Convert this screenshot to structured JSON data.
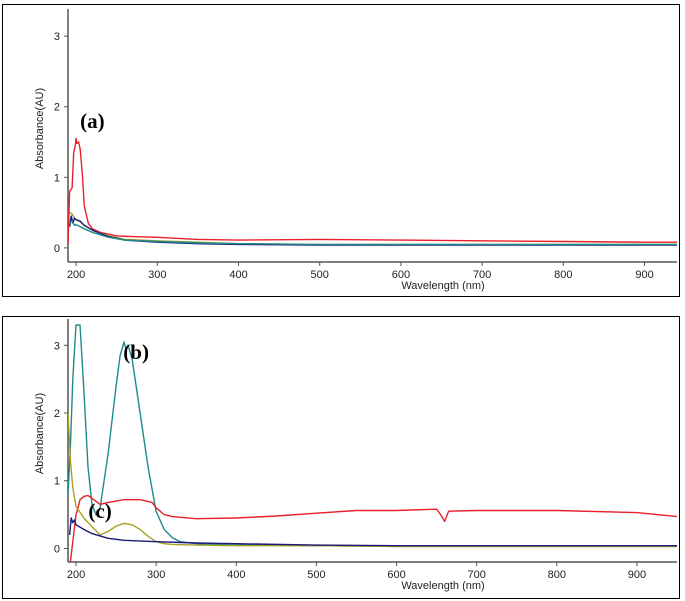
{
  "chart_data": [
    {
      "type": "line",
      "xlabel": "Wavelength (nm)",
      "ylabel": "Absorbance(AU)",
      "xlim": [
        190,
        940
      ],
      "ylim": [
        -0.2,
        3.3
      ],
      "xticks": [
        200,
        300,
        400,
        500,
        600,
        700,
        800,
        900
      ],
      "yticks": [
        0,
        1,
        2,
        3
      ],
      "annotations": [
        {
          "text": "(a)",
          "x": 220,
          "y": 1.7
        }
      ],
      "series": [
        {
          "color": "#e8202a",
          "x": [
            190,
            192,
            195,
            197,
            199,
            200,
            201,
            203,
            205,
            208,
            210,
            215,
            220,
            230,
            250,
            270,
            300,
            350,
            400,
            500,
            600,
            700,
            800,
            900,
            940
          ],
          "y": [
            0.05,
            0.8,
            0.85,
            1.35,
            1.45,
            1.55,
            1.48,
            1.5,
            1.4,
            1.0,
            0.6,
            0.35,
            0.27,
            0.22,
            0.17,
            0.16,
            0.15,
            0.12,
            0.11,
            0.12,
            0.11,
            0.1,
            0.09,
            0.08,
            0.08
          ]
        },
        {
          "color": "#a8a020",
          "x": [
            192,
            195,
            198,
            200,
            205,
            210,
            220,
            240,
            260,
            300,
            350,
            400,
            500,
            600,
            700,
            800,
            900,
            940
          ],
          "y": [
            0.5,
            0.48,
            0.42,
            0.4,
            0.37,
            0.32,
            0.25,
            0.17,
            0.12,
            0.1,
            0.08,
            0.06,
            0.05,
            0.05,
            0.05,
            0.05,
            0.05,
            0.05
          ]
        },
        {
          "color": "#1a1a7a",
          "x": [
            192,
            194,
            196,
            198,
            200,
            205,
            210,
            220,
            240,
            260,
            300,
            350,
            400,
            500,
            600,
            700,
            800,
            900,
            940
          ],
          "y": [
            0.3,
            0.45,
            0.35,
            0.42,
            0.4,
            0.38,
            0.32,
            0.25,
            0.16,
            0.11,
            0.08,
            0.06,
            0.05,
            0.04,
            0.04,
            0.04,
            0.04,
            0.04,
            0.04
          ]
        },
        {
          "color": "#1d8a8c",
          "x": [
            192,
            195,
            198,
            200,
            205,
            210,
            220,
            240,
            260,
            300,
            350,
            400,
            500,
            600,
            700,
            800,
            900,
            940
          ],
          "y": [
            0.35,
            0.38,
            0.32,
            0.33,
            0.3,
            0.27,
            0.22,
            0.15,
            0.11,
            0.09,
            0.07,
            0.06,
            0.05,
            0.05,
            0.05,
            0.05,
            0.05,
            0.05
          ]
        }
      ]
    },
    {
      "type": "line",
      "xlabel": "Wavelength (nm)",
      "ylabel": "Absorbance(AU)",
      "xlim": [
        190,
        950
      ],
      "ylim": [
        -0.2,
        3.3
      ],
      "xticks": [
        200,
        300,
        400,
        500,
        600,
        700,
        800,
        900
      ],
      "yticks": [
        0,
        1,
        2,
        3
      ],
      "annotations": [
        {
          "text": "(b)",
          "x": 275,
          "y": 2.8
        },
        {
          "text": "(c)",
          "x": 230,
          "y": 0.45
        }
      ],
      "series": [
        {
          "color": "#1d8a8c",
          "x": [
            190,
            193,
            196,
            200,
            205,
            210,
            215,
            220,
            225,
            230,
            240,
            250,
            255,
            260,
            262,
            265,
            270,
            280,
            290,
            300,
            310,
            320,
            330,
            350,
            400,
            500,
            600,
            700,
            800,
            900,
            950
          ],
          "y": [
            0.8,
            1.5,
            2.5,
            3.3,
            3.3,
            2.3,
            1.2,
            0.65,
            0.5,
            0.6,
            1.4,
            2.4,
            2.85,
            3.05,
            2.95,
            3.0,
            2.8,
            2.0,
            1.2,
            0.55,
            0.28,
            0.16,
            0.1,
            0.07,
            0.05,
            0.04,
            0.03,
            0.03,
            0.03,
            0.03,
            0.03
          ]
        },
        {
          "color": "#e8202a",
          "x": [
            193,
            196,
            198,
            200,
            203,
            205,
            210,
            215,
            220,
            230,
            240,
            250,
            260,
            280,
            295,
            300,
            310,
            320,
            350,
            400,
            450,
            500,
            550,
            600,
            650,
            655,
            660,
            665,
            700,
            800,
            900,
            950
          ],
          "y": [
            -0.2,
            0.1,
            0.3,
            0.5,
            0.62,
            0.72,
            0.77,
            0.78,
            0.74,
            0.65,
            0.68,
            0.7,
            0.72,
            0.72,
            0.68,
            0.6,
            0.5,
            0.47,
            0.44,
            0.45,
            0.48,
            0.52,
            0.56,
            0.56,
            0.58,
            0.5,
            0.4,
            0.55,
            0.56,
            0.56,
            0.53,
            0.47
          ]
        },
        {
          "color": "#a8a020",
          "x": [
            190,
            193,
            196,
            200,
            210,
            220,
            230,
            240,
            250,
            260,
            270,
            280,
            290,
            300,
            310,
            320,
            350,
            400,
            500,
            600,
            700,
            800,
            900,
            950
          ],
          "y": [
            2.0,
            1.3,
            0.9,
            0.62,
            0.45,
            0.32,
            0.2,
            0.25,
            0.33,
            0.37,
            0.35,
            0.28,
            0.18,
            0.1,
            0.07,
            0.06,
            0.05,
            0.04,
            0.04,
            0.03,
            0.03,
            0.03,
            0.03,
            0.03
          ]
        },
        {
          "color": "#1a1a7a",
          "x": [
            192,
            194,
            196,
            198,
            200,
            210,
            220,
            240,
            260,
            300,
            350,
            400,
            500,
            600,
            700,
            800,
            900,
            950
          ],
          "y": [
            0.2,
            0.45,
            0.38,
            0.42,
            0.35,
            0.28,
            0.22,
            0.15,
            0.12,
            0.1,
            0.08,
            0.07,
            0.05,
            0.04,
            0.04,
            0.04,
            0.04,
            0.04
          ]
        }
      ]
    }
  ]
}
